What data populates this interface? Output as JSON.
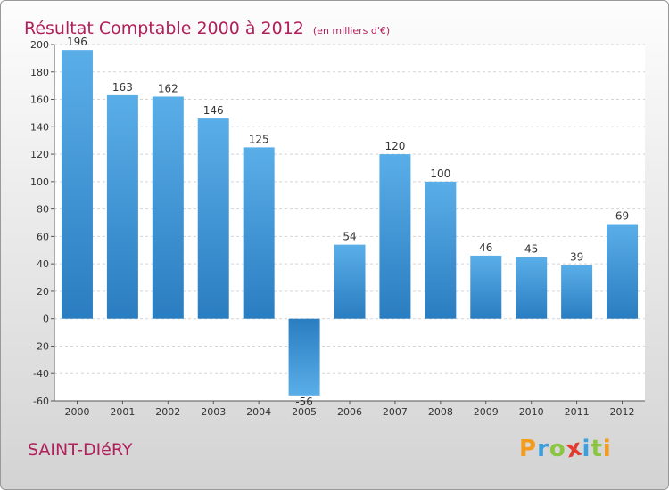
{
  "chart_data": {
    "type": "bar",
    "title": "Résultat Comptable 2000 à 2012",
    "subtitle": "(en milliers d'€)",
    "categories": [
      "2000",
      "2001",
      "2002",
      "2003",
      "2004",
      "2005",
      "2006",
      "2007",
      "2008",
      "2009",
      "2010",
      "2011",
      "2012"
    ],
    "values": [
      196,
      163,
      162,
      146,
      125,
      -56,
      54,
      120,
      100,
      46,
      45,
      39,
      69
    ],
    "ylim": [
      -60,
      200
    ],
    "yticks": [
      -60,
      -40,
      -20,
      0,
      20,
      40,
      60,
      80,
      100,
      120,
      140,
      160,
      180,
      200
    ],
    "grid": true,
    "xlabel": "",
    "ylabel": ""
  },
  "footer": {
    "commune": "SAINT-DIéRY",
    "logo_letters": [
      "P",
      "r",
      "o",
      "x",
      "i",
      "t",
      "i"
    ],
    "logo_colors": [
      "#f59b1c",
      "#3aa0e0",
      "#8bc541",
      "#e33b2e",
      "#3aa0e0",
      "#8bc541",
      "#f59b1c"
    ]
  },
  "colors": {
    "title": "#b0205a",
    "bar_light": "#5aaee8",
    "bar_dark": "#2a7dc0"
  }
}
